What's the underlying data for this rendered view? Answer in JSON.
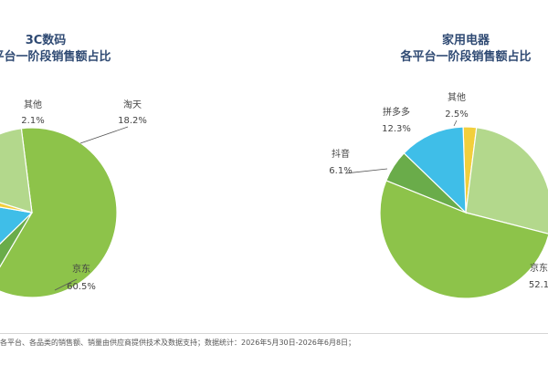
{
  "chart_data": [
    {
      "type": "pie",
      "title": [
        "3C数码",
        "各平台一阶段销售额占比"
      ],
      "series": [
        {
          "name": "京东",
          "value": 60.5,
          "label": "60.5%",
          "color": "#8dc34a"
        },
        {
          "name": "",
          "value": 4.2,
          "label": "",
          "color": "#6aac4a"
        },
        {
          "name": "",
          "value": 15.0,
          "label": "",
          "color": "#3fbee8"
        },
        {
          "name": "其他",
          "value": 2.1,
          "label": "2.1%",
          "color": "#f2cf3c"
        },
        {
          "name": "淘天",
          "value": 18.2,
          "label": "18.2%",
          "color": "#b3d88c"
        }
      ]
    },
    {
      "type": "pie",
      "title": [
        "家用电器",
        "各平台一阶段销售额占比"
      ],
      "series": [
        {
          "name": "其他",
          "value": 2.5,
          "label": "2.5%",
          "color": "#f2cf3c"
        },
        {
          "name": "",
          "value": 27.0,
          "label": "",
          "color": "#b3d88c"
        },
        {
          "name": "京东",
          "value": 52.1,
          "label": "52.1",
          "color": "#8dc34a"
        },
        {
          "name": "抖音",
          "value": 6.1,
          "label": "6.1%",
          "color": "#6aac4a"
        },
        {
          "name": "拼多多",
          "value": 12.3,
          "label": "12.3%",
          "color": "#3fbee8"
        }
      ]
    }
  ],
  "footer": "各平台、各品类的销售额、销量由供应商提供技术及数据支持；数据统计：2026年5月30日-2026年6月8日；"
}
